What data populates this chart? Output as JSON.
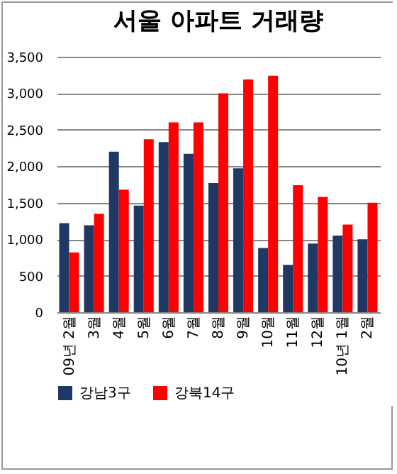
{
  "chart_data": {
    "type": "bar",
    "title": "서울 아파트 거래량",
    "categories": [
      "09년 2월",
      "3월",
      "4월",
      "5월",
      "6월",
      "7월",
      "8월",
      "9월",
      "10월",
      "11월",
      "12월",
      "10년 1월",
      "2월"
    ],
    "series": [
      {
        "name": "강남3구",
        "color": "#1f3864",
        "values": [
          1220,
          1190,
          2200,
          1460,
          2330,
          2170,
          1770,
          1970,
          880,
          650,
          940,
          1050,
          1000
        ]
      },
      {
        "name": "강북14구",
        "color": "#ff0000",
        "values": [
          820,
          1350,
          1680,
          2370,
          2600,
          2600,
          3000,
          3190,
          3240,
          1740,
          1580,
          1200,
          1500
        ]
      }
    ],
    "ylim": [
      0,
      3500
    ],
    "yticks": [
      0,
      500,
      {
        "value": 1000,
        "label": "1,000"
      },
      {
        "value": 1500,
        "label": "1,500"
      },
      {
        "value": 2000,
        "label": "2,000"
      },
      {
        "value": 2500,
        "label": "2,500"
      },
      {
        "value": 3000,
        "label": "3,000"
      },
      {
        "value": 3500,
        "label": "3,500"
      }
    ],
    "grid": "y",
    "legend": "bottom"
  }
}
